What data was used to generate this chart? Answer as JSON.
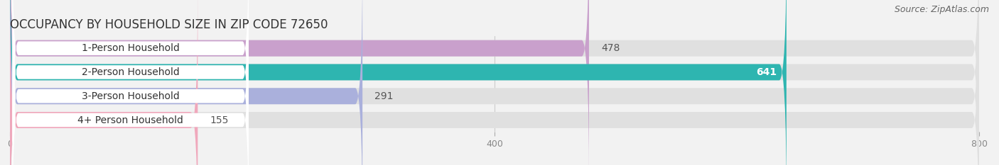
{
  "title": "OCCUPANCY BY HOUSEHOLD SIZE IN ZIP CODE 72650",
  "source": "Source: ZipAtlas.com",
  "categories": [
    "1-Person Household",
    "2-Person Household",
    "3-Person Household",
    "4+ Person Household"
  ],
  "values": [
    478,
    641,
    291,
    155
  ],
  "bar_colors": [
    "#c9a0cc",
    "#2eb5b0",
    "#aab0dc",
    "#f0a8bc"
  ],
  "xlim": [
    0,
    800
  ],
  "xticks": [
    0,
    400,
    800
  ],
  "background_color": "#f2f2f2",
  "bar_bg_color": "#e0e0e0",
  "label_bg_color": "#ffffff",
  "title_fontsize": 12,
  "source_fontsize": 9,
  "label_fontsize": 10,
  "value_fontsize": 10
}
